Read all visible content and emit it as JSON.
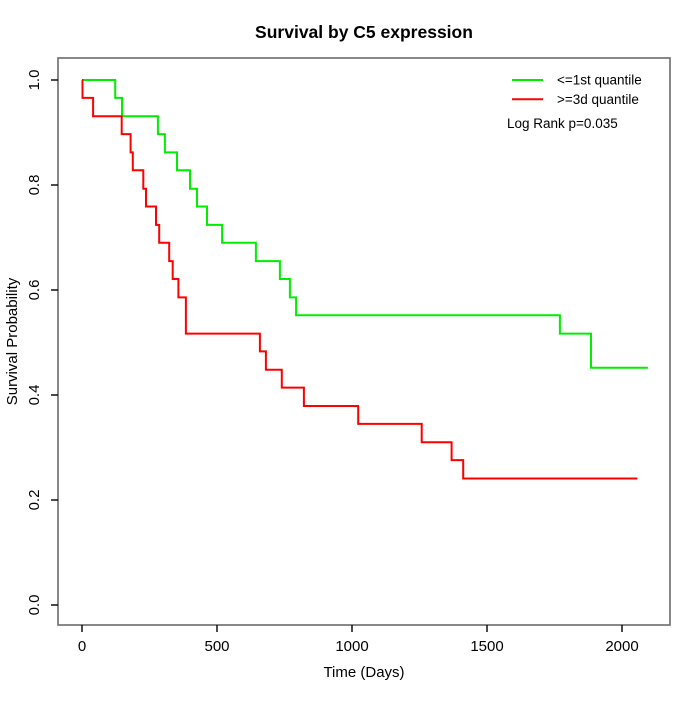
{
  "figure_title": "Survival by C5 expression",
  "chart_data": {
    "type": "line",
    "subtype": "kaplan-meier-step",
    "title": "Survival by C5 expression",
    "xlabel": "Time (Days)",
    "ylabel": "Survival Probability",
    "xlim": [
      0,
      2100
    ],
    "ylim": [
      0.0,
      1.0
    ],
    "x_ticks": [
      0,
      500,
      1000,
      1500,
      2000
    ],
    "y_ticks": [
      {
        "value": 0.0,
        "label": "0.0"
      },
      {
        "value": 0.2,
        "label": "0.2"
      },
      {
        "value": 0.4,
        "label": "0.4"
      },
      {
        "value": 0.6,
        "label": "0.6"
      },
      {
        "value": 0.8,
        "label": "0.8"
      },
      {
        "value": 1.0,
        "label": "1.0"
      }
    ],
    "grid": false,
    "legend_position": "top-right",
    "annotation": "Log Rank p=0.035",
    "log_rank_p": 0.035,
    "series": [
      {
        "name": "<=1st quantile",
        "color": "#00ee00",
        "step": true,
        "points": [
          [
            0,
            1.0
          ],
          [
            123,
            0.966
          ],
          [
            148,
            0.931
          ],
          [
            281,
            0.897
          ],
          [
            307,
            0.862
          ],
          [
            352,
            0.828
          ],
          [
            400,
            0.793
          ],
          [
            426,
            0.759
          ],
          [
            463,
            0.724
          ],
          [
            519,
            0.69
          ],
          [
            644,
            0.655
          ],
          [
            733,
            0.621
          ],
          [
            770,
            0.586
          ],
          [
            793,
            0.552
          ],
          [
            1770,
            0.517
          ],
          [
            1885,
            0.452
          ]
        ],
        "end_time": 2096
      },
      {
        "name": ">=3d quantile",
        "color": "#ff0000",
        "step": true,
        "points": [
          [
            0,
            1.0
          ],
          [
            2,
            0.966
          ],
          [
            41,
            0.931
          ],
          [
            147,
            0.897
          ],
          [
            180,
            0.862
          ],
          [
            188,
            0.828
          ],
          [
            227,
            0.793
          ],
          [
            237,
            0.759
          ],
          [
            274,
            0.724
          ],
          [
            286,
            0.69
          ],
          [
            323,
            0.655
          ],
          [
            336,
            0.621
          ],
          [
            357,
            0.586
          ],
          [
            385,
            0.517
          ],
          [
            659,
            0.483
          ],
          [
            681,
            0.448
          ],
          [
            740,
            0.414
          ],
          [
            822,
            0.379
          ],
          [
            1023,
            0.345
          ],
          [
            1258,
            0.31
          ],
          [
            1369,
            0.276
          ],
          [
            1412,
            0.241
          ]
        ],
        "end_time": 2057
      }
    ]
  }
}
